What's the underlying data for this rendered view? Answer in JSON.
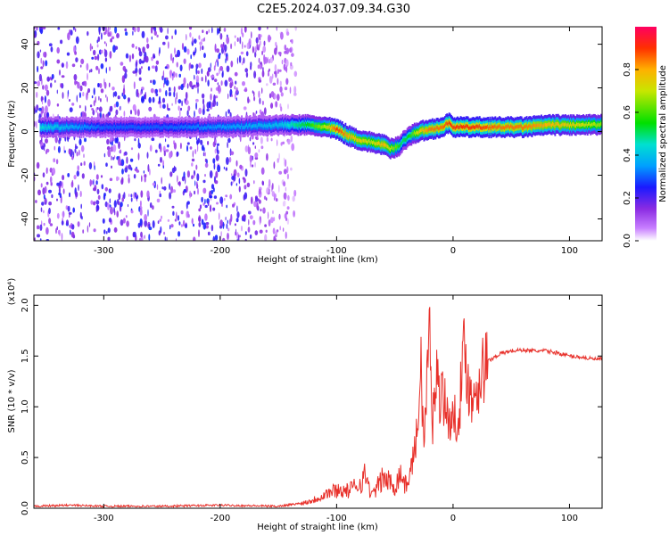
{
  "title": "C2E5.2024.037.09.34.G30",
  "colors": {
    "snr_line": "#e8302a",
    "axis": "#000000"
  },
  "chart_data": [
    {
      "type": "heatmap",
      "xlabel": "Height of straight line (km)",
      "ylabel": "Frequency (Hz)",
      "xlim": [
        -360,
        128
      ],
      "ylim": [
        -50,
        48
      ],
      "xticks": [
        -300,
        -200,
        -100,
        0,
        100
      ],
      "yticks": [
        -40,
        -20,
        0,
        20,
        40
      ],
      "grid": false,
      "colorbar": {
        "label": "Normalized spectral amplitude",
        "range": [
          0,
          1
        ],
        "ticks": [
          0.0,
          0.2,
          0.4,
          0.6,
          0.8
        ],
        "colormap": "rainbow"
      },
      "ridge": {
        "x": [
          -355,
          -340,
          -300,
          -250,
          -200,
          -150,
          -125,
          -110,
          -100,
          -90,
          -80,
          -70,
          -60,
          -55,
          -48,
          -45,
          -38,
          -30,
          -20,
          -10,
          -3,
          0,
          20,
          40,
          60,
          80,
          100,
          128
        ],
        "frequency": [
          2,
          2,
          2,
          2,
          2,
          3,
          3,
          2,
          1,
          -2,
          -4,
          -5,
          -6,
          -8,
          -7,
          -5,
          -2,
          0,
          1,
          2,
          4,
          2,
          2,
          2,
          2,
          3,
          3,
          3
        ],
        "amplitude": [
          0.45,
          0.4,
          0.3,
          0.3,
          0.35,
          0.4,
          0.55,
          0.7,
          0.9,
          0.8,
          0.75,
          0.7,
          0.8,
          0.7,
          0.6,
          0.5,
          0.55,
          0.75,
          0.85,
          0.85,
          0.9,
          0.9,
          0.9,
          0.85,
          0.85,
          0.8,
          0.75,
          0.65
        ]
      },
      "noise_region_x": [
        -360,
        -135
      ]
    },
    {
      "type": "line",
      "xlabel": "Height of straight line (km)",
      "ylabel": "SNR (10 * v/v)",
      "y_multiplier": "(x10⁴)",
      "xlim": [
        -360,
        128
      ],
      "ylim": [
        0,
        2.1
      ],
      "xticks": [
        -300,
        -200,
        -100,
        0,
        100
      ],
      "yticks": [
        0.0,
        0.5,
        1.0,
        1.5,
        2.0
      ],
      "grid": false,
      "series": [
        {
          "x": [
            -360,
            -330,
            -300,
            -250,
            -200,
            -150,
            -130,
            -120,
            -110,
            -100,
            -90,
            -80,
            -75,
            -70,
            -60,
            -50,
            -45,
            -40,
            -35,
            -30,
            -28,
            -25,
            -22,
            -20,
            -18,
            -15,
            -12,
            -10,
            -5,
            0,
            5,
            10,
            15,
            20,
            25,
            30,
            40,
            50,
            60,
            70,
            80,
            90,
            100,
            110,
            120,
            128
          ],
          "y": [
            0.02,
            0.03,
            0.02,
            0.02,
            0.03,
            0.02,
            0.05,
            0.08,
            0.14,
            0.18,
            0.17,
            0.25,
            0.33,
            0.12,
            0.3,
            0.22,
            0.35,
            0.2,
            0.45,
            0.8,
            1.55,
            0.6,
            1.35,
            1.8,
            0.7,
            1.4,
            1.1,
            1.25,
            0.9,
            0.85,
            0.95,
            1.6,
            1.05,
            1.2,
            1.35,
            1.45,
            1.52,
            1.55,
            1.56,
            1.55,
            1.55,
            1.53,
            1.5,
            1.49,
            1.47,
            1.47
          ]
        }
      ]
    }
  ]
}
